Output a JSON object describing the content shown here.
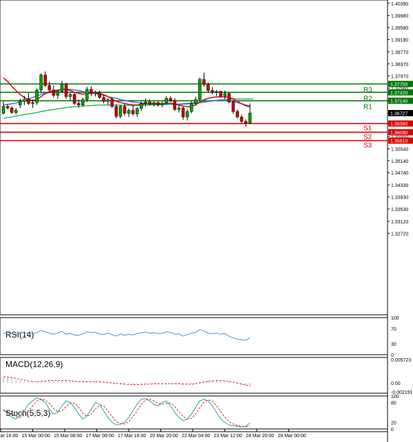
{
  "chart_data": {
    "type": "candlestick",
    "main": {
      "ylim": [
        1.3,
        1.405
      ],
      "y_ticks": [
        "1.40390",
        "1.39980",
        "1.39580",
        "1.39180",
        "1.38770",
        "1.38370",
        "1.37970",
        "1.37560",
        "1.37140",
        "1.36727",
        "1.36380",
        "1.35950",
        "1.35540",
        "1.35140",
        "1.34740",
        "1.34330",
        "1.33930",
        "1.33530",
        "1.33120",
        "1.32720"
      ],
      "x_ticks": [
        "14 Mar 16:00",
        "15 Mar 00:00",
        "15 Mar 08:00",
        "17 Mar 08:00",
        "17 Mar 16:00",
        "20 Mar 20:00",
        "22 Mar 04:00",
        "23 Mar 12:00",
        "24 Mar 20:00",
        "28 Mar 00:00"
      ],
      "candles": [
        {
          "o": 1.3672,
          "h": 1.3712,
          "l": 1.3668,
          "c": 1.3695
        },
        {
          "o": 1.3695,
          "h": 1.3703,
          "l": 1.3685,
          "c": 1.369
        },
        {
          "o": 1.369,
          "h": 1.3695,
          "l": 1.367,
          "c": 1.3675
        },
        {
          "o": 1.3675,
          "h": 1.369,
          "l": 1.3668,
          "c": 1.3682
        },
        {
          "o": 1.37,
          "h": 1.372,
          "l": 1.369,
          "c": 1.3712
        },
        {
          "o": 1.3712,
          "h": 1.373,
          "l": 1.37,
          "c": 1.3718
        },
        {
          "o": 1.3718,
          "h": 1.374,
          "l": 1.37,
          "c": 1.3705
        },
        {
          "o": 1.3705,
          "h": 1.3718,
          "l": 1.369,
          "c": 1.3708
        },
        {
          "o": 1.3708,
          "h": 1.3755,
          "l": 1.37,
          "c": 1.375
        },
        {
          "o": 1.375,
          "h": 1.3805,
          "l": 1.374,
          "c": 1.38
        },
        {
          "o": 1.38,
          "h": 1.3812,
          "l": 1.376,
          "c": 1.3765
        },
        {
          "o": 1.3765,
          "h": 1.3778,
          "l": 1.374,
          "c": 1.375
        },
        {
          "o": 1.375,
          "h": 1.3765,
          "l": 1.3725,
          "c": 1.3732
        },
        {
          "o": 1.3732,
          "h": 1.375,
          "l": 1.372,
          "c": 1.3745
        },
        {
          "o": 1.3745,
          "h": 1.378,
          "l": 1.374,
          "c": 1.377
        },
        {
          "o": 1.377,
          "h": 1.3775,
          "l": 1.372,
          "c": 1.3728
        },
        {
          "o": 1.3728,
          "h": 1.374,
          "l": 1.3715,
          "c": 1.3735
        },
        {
          "o": 1.3735,
          "h": 1.374,
          "l": 1.37,
          "c": 1.3705
        },
        {
          "o": 1.3705,
          "h": 1.3718,
          "l": 1.369,
          "c": 1.37
        },
        {
          "o": 1.37,
          "h": 1.3725,
          "l": 1.3695,
          "c": 1.3718
        },
        {
          "o": 1.3718,
          "h": 1.376,
          "l": 1.371,
          "c": 1.3752
        },
        {
          "o": 1.3752,
          "h": 1.3762,
          "l": 1.373,
          "c": 1.3738
        },
        {
          "o": 1.3738,
          "h": 1.3748,
          "l": 1.3728,
          "c": 1.3742
        },
        {
          "o": 1.3742,
          "h": 1.3748,
          "l": 1.372,
          "c": 1.3725
        },
        {
          "o": 1.3725,
          "h": 1.3732,
          "l": 1.3705,
          "c": 1.3712
        },
        {
          "o": 1.3712,
          "h": 1.3722,
          "l": 1.37,
          "c": 1.3718
        },
        {
          "o": 1.3718,
          "h": 1.3725,
          "l": 1.369,
          "c": 1.3695
        },
        {
          "o": 1.3695,
          "h": 1.3702,
          "l": 1.3655,
          "c": 1.3662
        },
        {
          "o": 1.3662,
          "h": 1.37,
          "l": 1.3655,
          "c": 1.3695
        },
        {
          "o": 1.3695,
          "h": 1.3705,
          "l": 1.3665,
          "c": 1.3672
        },
        {
          "o": 1.3672,
          "h": 1.3688,
          "l": 1.366,
          "c": 1.3682
        },
        {
          "o": 1.3682,
          "h": 1.37,
          "l": 1.3665,
          "c": 1.367
        },
        {
          "o": 1.367,
          "h": 1.3692,
          "l": 1.366,
          "c": 1.3688
        },
        {
          "o": 1.3688,
          "h": 1.3712,
          "l": 1.368,
          "c": 1.3705
        },
        {
          "o": 1.3705,
          "h": 1.3722,
          "l": 1.3695,
          "c": 1.371
        },
        {
          "o": 1.371,
          "h": 1.3718,
          "l": 1.3698,
          "c": 1.3702
        },
        {
          "o": 1.3702,
          "h": 1.3712,
          "l": 1.3695,
          "c": 1.3708
        },
        {
          "o": 1.3708,
          "h": 1.3712,
          "l": 1.3695,
          "c": 1.37
        },
        {
          "o": 1.37,
          "h": 1.3712,
          "l": 1.3692,
          "c": 1.3706
        },
        {
          "o": 1.3706,
          "h": 1.373,
          "l": 1.37,
          "c": 1.3722
        },
        {
          "o": 1.3722,
          "h": 1.373,
          "l": 1.371,
          "c": 1.3715
        },
        {
          "o": 1.3715,
          "h": 1.3722,
          "l": 1.368,
          "c": 1.3685
        },
        {
          "o": 1.3685,
          "h": 1.37,
          "l": 1.3675,
          "c": 1.369
        },
        {
          "o": 1.369,
          "h": 1.3695,
          "l": 1.365,
          "c": 1.366
        },
        {
          "o": 1.366,
          "h": 1.3685,
          "l": 1.3648,
          "c": 1.3678
        },
        {
          "o": 1.3678,
          "h": 1.3712,
          "l": 1.3672,
          "c": 1.3705
        },
        {
          "o": 1.3705,
          "h": 1.3728,
          "l": 1.3698,
          "c": 1.3718
        },
        {
          "o": 1.3718,
          "h": 1.3792,
          "l": 1.3715,
          "c": 1.3785
        },
        {
          "o": 1.3785,
          "h": 1.3808,
          "l": 1.376,
          "c": 1.3768
        },
        {
          "o": 1.3768,
          "h": 1.3775,
          "l": 1.374,
          "c": 1.3748
        },
        {
          "o": 1.3748,
          "h": 1.376,
          "l": 1.3735,
          "c": 1.3742
        },
        {
          "o": 1.3742,
          "h": 1.375,
          "l": 1.373,
          "c": 1.3745
        },
        {
          "o": 1.3745,
          "h": 1.3748,
          "l": 1.3725,
          "c": 1.373
        },
        {
          "o": 1.373,
          "h": 1.3748,
          "l": 1.372,
          "c": 1.3738
        },
        {
          "o": 1.3738,
          "h": 1.3742,
          "l": 1.3705,
          "c": 1.371
        },
        {
          "o": 1.371,
          "h": 1.3715,
          "l": 1.367,
          "c": 1.3678
        },
        {
          "o": 1.3678,
          "h": 1.3685,
          "l": 1.3655,
          "c": 1.366
        },
        {
          "o": 1.366,
          "h": 1.3668,
          "l": 1.3638,
          "c": 1.3645
        },
        {
          "o": 1.3645,
          "h": 1.3652,
          "l": 1.3628,
          "c": 1.364
        },
        {
          "o": 1.364,
          "h": 1.3705,
          "l": 1.3636,
          "c": 1.3673
        }
      ],
      "ma_red": [
        1.379,
        1.3778,
        1.3762,
        1.3748,
        1.3735,
        1.3725,
        1.3718,
        1.3715,
        1.3718,
        1.3728,
        1.3738,
        1.3742,
        1.3745,
        1.3748,
        1.3752,
        1.3752,
        1.3748,
        1.3742,
        1.3738,
        1.3736,
        1.3738,
        1.374,
        1.374,
        1.3738,
        1.3734,
        1.3728,
        1.372,
        1.3712,
        1.3708,
        1.3705,
        1.3702,
        1.37,
        1.37,
        1.3702,
        1.3704,
        1.3705,
        1.3705,
        1.3705,
        1.3704,
        1.3706,
        1.3706,
        1.3703,
        1.37,
        1.3696,
        1.3694,
        1.3696,
        1.37,
        1.371,
        1.3718,
        1.3722,
        1.3725,
        1.3727,
        1.3727,
        1.3727,
        1.3725,
        1.372,
        1.3712,
        1.3704,
        1.3697,
        1.3694
      ],
      "ma_blue": [
        1.37,
        1.3702,
        1.3704,
        1.3706,
        1.371,
        1.3715,
        1.372,
        1.3725,
        1.373,
        1.3735,
        1.374,
        1.3745,
        1.3748,
        1.375,
        1.3752,
        1.3752,
        1.3752,
        1.375,
        1.3748,
        1.3745,
        1.3742,
        1.374,
        1.3738,
        1.3735,
        1.3732,
        1.3728,
        1.3725,
        1.3722,
        1.3718,
        1.3715,
        1.3712,
        1.371,
        1.3708,
        1.3706,
        1.3705,
        1.3704,
        1.3703,
        1.3702,
        1.3702,
        1.3702,
        1.3703,
        1.3703,
        1.3703,
        1.3704,
        1.3705,
        1.3706,
        1.3707,
        1.3709,
        1.3711,
        1.3713,
        1.3714,
        1.3715,
        1.3715,
        1.3715,
        1.3714,
        1.3712,
        1.3708,
        1.3704,
        1.37,
        1.3697
      ],
      "ma_green": [
        1.3655,
        1.3658,
        1.366,
        1.3663,
        1.3665,
        1.3668,
        1.367,
        1.3672,
        1.3675,
        1.3678,
        1.368,
        1.3683,
        1.3685,
        1.3687,
        1.3689,
        1.3691,
        1.3693,
        1.3694,
        1.3695,
        1.3696,
        1.3697,
        1.3698,
        1.3699,
        1.37,
        1.37,
        1.37,
        1.37,
        1.37,
        1.3699,
        1.3699,
        1.3698,
        1.3698,
        1.3698,
        1.3699,
        1.37,
        1.37,
        1.37,
        1.3701,
        1.3701,
        1.3702,
        1.3702,
        1.3702,
        1.3702,
        1.3702,
        1.3703,
        1.3704,
        1.3705,
        1.3707,
        1.3709,
        1.3711,
        1.3713,
        1.3715,
        1.3717,
        1.3718,
        1.3719,
        1.372,
        1.372,
        1.372,
        1.372,
        1.372
      ],
      "ma_green_extension": 1.372,
      "current_price": {
        "value": 1.36727,
        "label": "1.36727"
      },
      "levels": [
        {
          "name": "R3",
          "value": 1.377,
          "label": "1.37700",
          "color": "#007700",
          "kind": "resistance"
        },
        {
          "name": "R2",
          "value": 1.3742,
          "label": "1.37420",
          "color": "#007700",
          "kind": "resistance"
        },
        {
          "name": "R1",
          "value": 1.3714,
          "label": "1.37140",
          "color": "#007700",
          "kind": "resistance"
        },
        {
          "name": "S1",
          "value": 1.3638,
          "label": "1.36380",
          "color": "#dd0000",
          "kind": "support"
        },
        {
          "name": "S2",
          "value": 1.3609,
          "label": "1.36090",
          "color": "#dd0000",
          "kind": "support"
        },
        {
          "name": "S3",
          "value": 1.3581,
          "label": "1.35810",
          "color": "#dd0000",
          "kind": "support"
        }
      ]
    },
    "rsi": {
      "title": "RSI(14)",
      "ylim": [
        0,
        100
      ],
      "y_ticks": [
        "100",
        "70",
        "30",
        "0"
      ],
      "values": [
        58,
        60,
        57,
        55,
        59,
        60,
        57,
        56,
        60,
        66,
        62,
        58,
        55,
        58,
        63,
        55,
        57,
        53,
        52,
        56,
        62,
        59,
        60,
        56,
        55,
        58,
        54,
        50,
        56,
        52,
        55,
        53,
        57,
        59,
        61,
        58,
        59,
        57,
        58,
        62,
        60,
        55,
        56,
        50,
        54,
        58,
        60,
        68,
        64,
        58,
        57,
        58,
        55,
        57,
        50,
        45,
        42,
        40,
        39,
        46
      ]
    },
    "macd": {
      "title": "MACD(12,26,9)",
      "ylim": [
        -0.0025,
        0.0062
      ],
      "y_ticks": [
        "0.005723",
        "0.00",
        "-0.002191"
      ],
      "histogram": [
        0.0014,
        0.0012,
        0.001,
        0.0008,
        0.0006,
        0.0004,
        0.0003,
        0.0002,
        0.0003,
        0.0005,
        0.0006,
        0.0006,
        0.0005,
        0.0005,
        0.0006,
        0.0005,
        0.0004,
        0.0003,
        0.0002,
        0.0002,
        0.0003,
        0.0003,
        0.0003,
        0.0002,
        0.0001,
        0.0001,
        -0.0001,
        -0.0003,
        -0.0003,
        -0.0004,
        -0.0004,
        -0.0005,
        -0.0004,
        -0.0003,
        -0.0002,
        -0.0002,
        -0.0002,
        -0.0002,
        -0.0002,
        -0.0001,
        -0.0001,
        -0.0002,
        -0.0002,
        -0.0004,
        -0.0004,
        -0.0003,
        -0.0001,
        0.0004,
        0.0006,
        0.0006,
        0.0006,
        0.0006,
        0.0005,
        0.0005,
        0.0003,
        0.0,
        -0.0003,
        -0.0006,
        -0.0008,
        -0.0009
      ],
      "signal": [
        0.0015,
        0.0014,
        0.0013,
        0.0011,
        0.0009,
        0.0007,
        0.0005,
        0.0004,
        0.0003,
        0.0004,
        0.0005,
        0.0006,
        0.0006,
        0.0006,
        0.0006,
        0.0006,
        0.0005,
        0.0004,
        0.0003,
        0.0003,
        0.0003,
        0.0003,
        0.0003,
        0.0003,
        0.0002,
        0.0001,
        0.0,
        -0.0001,
        -0.0002,
        -0.0003,
        -0.0004,
        -0.0004,
        -0.0004,
        -0.0004,
        -0.0003,
        -0.0003,
        -0.0002,
        -0.0002,
        -0.0002,
        -0.0002,
        -0.0002,
        -0.0002,
        -0.0002,
        -0.0003,
        -0.0003,
        -0.0003,
        -0.0002,
        0.0,
        0.0002,
        0.0004,
        0.0005,
        0.0006,
        0.0006,
        0.0005,
        0.0004,
        0.0002,
        0.0,
        -0.0003,
        -0.0005,
        -0.0007
      ]
    },
    "stoch": {
      "title": "Stoch(5,5,3)",
      "ylim": [
        0,
        100
      ],
      "y_ticks": [
        "100",
        "80",
        "20",
        "0"
      ],
      "k": [
        60,
        45,
        35,
        30,
        40,
        55,
        75,
        85,
        95,
        90,
        80,
        60,
        45,
        50,
        70,
        85,
        80,
        65,
        45,
        30,
        40,
        60,
        80,
        75,
        55,
        35,
        20,
        12,
        15,
        20,
        35,
        55,
        75,
        90,
        92,
        85,
        75,
        70,
        80,
        85,
        70,
        50,
        35,
        25,
        30,
        45,
        65,
        85,
        90,
        85,
        70,
        50,
        30,
        20,
        12,
        10,
        8,
        6,
        8,
        18
      ],
      "d": [
        55,
        52,
        45,
        38,
        35,
        42,
        55,
        70,
        85,
        90,
        88,
        78,
        62,
        52,
        55,
        68,
        78,
        78,
        65,
        48,
        38,
        45,
        60,
        72,
        70,
        55,
        38,
        22,
        15,
        15,
        22,
        38,
        55,
        75,
        88,
        90,
        85,
        78,
        75,
        78,
        78,
        68,
        52,
        38,
        30,
        32,
        45,
        65,
        82,
        88,
        85,
        70,
        52,
        35,
        22,
        15,
        10,
        8,
        7,
        10
      ]
    }
  }
}
